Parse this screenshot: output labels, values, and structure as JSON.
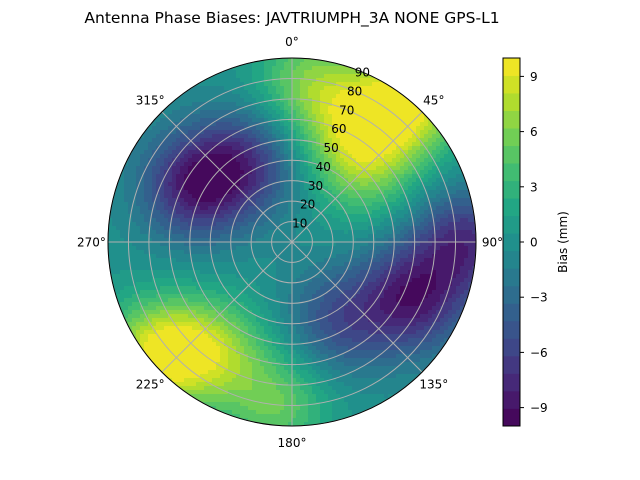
{
  "chart_data": {
    "type": "heatmap",
    "projection": "polar",
    "title": "Antenna Phase Biases: JAVTRIUMPH_3A   NONE GPS-L1",
    "theta_zero_location": "N",
    "theta_direction": "clockwise",
    "theta_ticks": [
      0,
      45,
      90,
      135,
      180,
      225,
      270,
      315
    ],
    "theta_tick_labels": [
      "0°",
      "45°",
      "90°",
      "135°",
      "180°",
      "225°",
      "270°",
      "315°"
    ],
    "r_range": [
      0,
      90
    ],
    "r_ticks": [
      10,
      20,
      30,
      40,
      50,
      60,
      70,
      80,
      90
    ],
    "r_tick_labels": [
      "10",
      "20",
      "30",
      "40",
      "50",
      "60",
      "70",
      "80",
      "90"
    ],
    "r_label_azimuth_deg": 22.5,
    "grid": true,
    "colormap": "viridis",
    "colorbar": {
      "label": "Bias (mm)",
      "vmin": -10,
      "vmax": 10,
      "levels": 21,
      "ticks": [
        9,
        6,
        3,
        0,
        -3,
        -6,
        -9
      ],
      "tick_labels": [
        "9",
        "6",
        "3",
        "0",
        "−3",
        "−6",
        "−9"
      ]
    },
    "field": {
      "description_unit": "mm",
      "center_value": 0,
      "features": [
        {
          "azimuth": 40,
          "zenith": 88,
          "value": 9
        },
        {
          "azimuth": 25,
          "zenith": 65,
          "value": 5
        },
        {
          "azimuth": 5,
          "zenith": 80,
          "value": 5
        },
        {
          "azimuth": 45,
          "zenith": 50,
          "value": 5
        },
        {
          "azimuth": 230,
          "zenith": 85,
          "value": 9
        },
        {
          "azimuth": 215,
          "zenith": 65,
          "value": 6
        },
        {
          "azimuth": 185,
          "zenith": 80,
          "value": 5
        },
        {
          "azimuth": 300,
          "zenith": 55,
          "value": -8
        },
        {
          "azimuth": 330,
          "zenith": 45,
          "value": -6
        },
        {
          "azimuth": 115,
          "zenith": 65,
          "value": -8
        },
        {
          "azimuth": 90,
          "zenith": 85,
          "value": -7
        },
        {
          "azimuth": 150,
          "zenith": 45,
          "value": -5
        }
      ]
    }
  }
}
